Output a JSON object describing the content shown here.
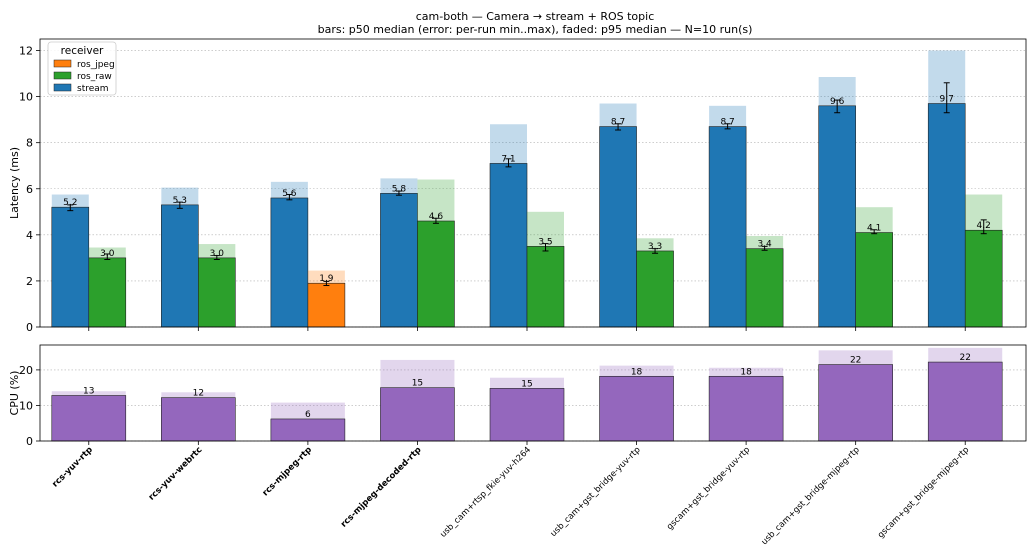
{
  "title": {
    "line1": "cam-both — Camera → stream + ROS topic",
    "line2": "bars: p50 median (error: per-run min..max), faded: p95 median  —  N=10 run(s)"
  },
  "colors": {
    "ros_jpeg": "#ff7f0e",
    "ros_raw": "#2ca02c",
    "stream": "#1f77b4",
    "cpu": "#9467bd"
  },
  "chart_data": [
    {
      "type": "bar",
      "ylabel": "Latency (ms)",
      "ylim": [
        0,
        12.5
      ],
      "yticks": [
        0,
        2,
        4,
        6,
        8,
        10,
        12
      ],
      "grid": "horizontal dotted",
      "legend": {
        "title": "receiver",
        "placement": "top-left",
        "entries": [
          "ros_jpeg",
          "ros_raw",
          "stream"
        ]
      },
      "categories": [
        "rcs-yuv-rtp",
        "rcs-yuv-webrtc",
        "rcs-mjpeg-rtp",
        "rcs-mjpeg-decoded-rtp",
        "usb_cam+rtsp_fkie-yuv-h264",
        "usb_cam+gst_bridge-yuv-rtp",
        "gscam+gst_bridge-yuv-rtp",
        "usb_cam+gst_bridge-mjpeg-rtp",
        "gscam+gst_bridge-mjpeg-rtp"
      ],
      "bold_categories": [
        "rcs-yuv-rtp",
        "rcs-yuv-webrtc",
        "rcs-mjpeg-rtp",
        "rcs-mjpeg-decoded-rtp"
      ],
      "series": [
        {
          "name": "stream",
          "slot": "left",
          "p50": [
            5.2,
            5.3,
            5.6,
            5.8,
            7.1,
            8.7,
            8.7,
            9.6,
            9.7
          ],
          "p95": [
            5.75,
            6.05,
            6.3,
            6.45,
            8.8,
            9.7,
            9.6,
            10.85,
            12.0
          ],
          "err_min": [
            5.05,
            5.15,
            5.52,
            5.72,
            6.95,
            8.55,
            8.6,
            9.3,
            9.3
          ],
          "err_max": [
            5.3,
            5.42,
            5.75,
            5.9,
            7.3,
            8.82,
            8.82,
            9.85,
            10.6
          ],
          "labels": [
            "5.2",
            "5.3",
            "5.6",
            "5.8",
            "7.1",
            "8.7",
            "8.7",
            "9.6",
            "9.7"
          ]
        },
        {
          "name": "ros_raw",
          "slot": "right",
          "p50": [
            3.0,
            3.0,
            null,
            4.6,
            3.5,
            3.3,
            3.4,
            4.1,
            4.2
          ],
          "p95": [
            3.45,
            3.6,
            null,
            6.4,
            5.0,
            3.85,
            3.95,
            5.2,
            5.75
          ],
          "err_min": [
            2.93,
            2.93,
            null,
            4.5,
            3.3,
            3.2,
            3.33,
            4.05,
            4.05
          ],
          "err_max": [
            3.17,
            3.1,
            null,
            4.72,
            3.62,
            3.4,
            3.5,
            4.22,
            4.65
          ],
          "labels": [
            "3.0",
            "3.0",
            "",
            "4.6",
            "3.5",
            "3.3",
            "3.4",
            "4.1",
            "4.2"
          ]
        },
        {
          "name": "ros_jpeg",
          "slot": "right",
          "p50": [
            null,
            null,
            1.9,
            null,
            null,
            null,
            null,
            null,
            null
          ],
          "p95": [
            null,
            null,
            2.45,
            null,
            null,
            null,
            null,
            null,
            null
          ],
          "err_min": [
            null,
            null,
            1.8,
            null,
            null,
            null,
            null,
            null,
            null
          ],
          "err_max": [
            null,
            null,
            1.98,
            null,
            null,
            null,
            null,
            null,
            null
          ],
          "labels": [
            "",
            "",
            "1.9",
            "",
            "",
            "",
            "",
            "",
            ""
          ]
        }
      ]
    },
    {
      "type": "bar",
      "ylabel": "CPU (%)",
      "ylim": [
        0,
        27
      ],
      "yticks": [
        0,
        10,
        20
      ],
      "grid": "horizontal dotted",
      "categories": [
        "rcs-yuv-rtp",
        "rcs-yuv-webrtc",
        "rcs-mjpeg-rtp",
        "rcs-mjpeg-decoded-rtp",
        "usb_cam+rtsp_fkie-yuv-h264",
        "usb_cam+gst_bridge-yuv-rtp",
        "gscam+gst_bridge-yuv-rtp",
        "usb_cam+gst_bridge-mjpeg-rtp",
        "gscam+gst_bridge-mjpeg-rtp"
      ],
      "series": [
        {
          "name": "cpu",
          "p50": [
            12.8,
            12.2,
            6.2,
            15.0,
            14.8,
            18.2,
            18.2,
            21.5,
            22.2
          ],
          "p95": [
            14.0,
            13.7,
            10.8,
            22.8,
            17.8,
            21.2,
            20.6,
            25.5,
            26.2
          ],
          "labels": [
            "13",
            "12",
            "6",
            "15",
            "15",
            "18",
            "18",
            "22",
            "22"
          ]
        }
      ]
    }
  ]
}
